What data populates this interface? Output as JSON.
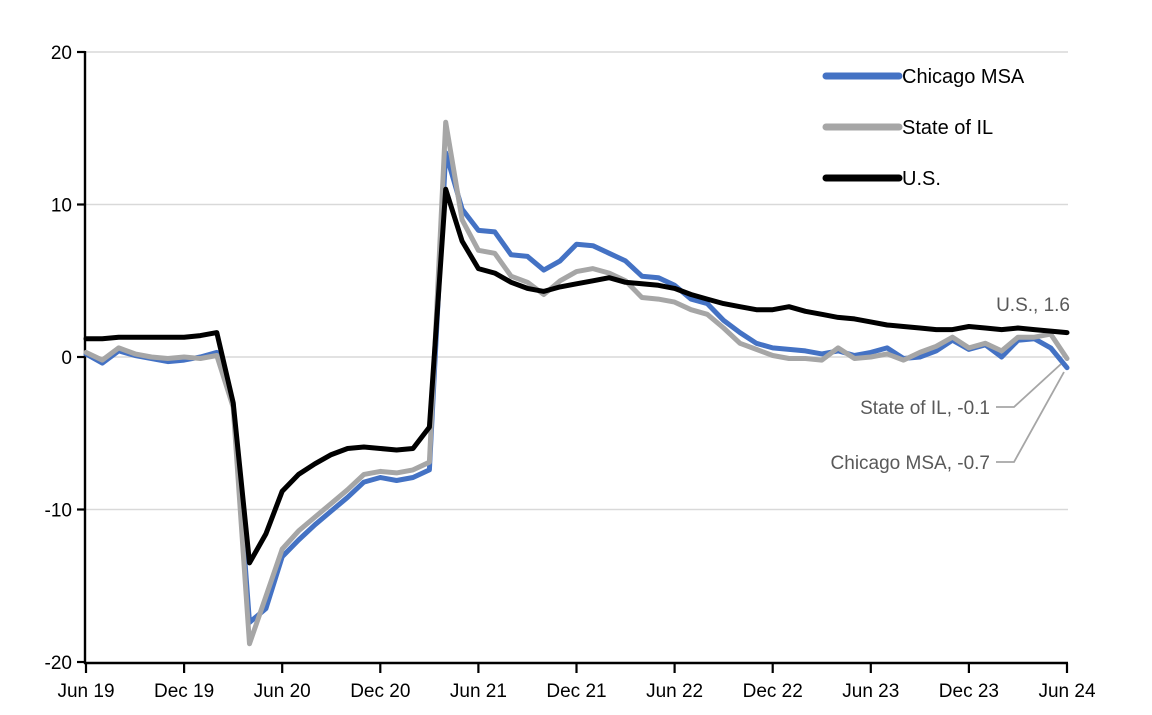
{
  "chart_data": {
    "type": "line",
    "title": "",
    "x_start": "Jun 2019",
    "x_end": "Jun 2024",
    "frequency": "monthly",
    "months_span": 60,
    "x_tick_labels": [
      "Jun 19",
      "Dec 19",
      "Jun 20",
      "Dec 20",
      "Jun 21",
      "Dec 21",
      "Jun 22",
      "Dec 22",
      "Jun 23",
      "Dec 23",
      "Jun 24"
    ],
    "y_tick_labels": [
      "20",
      "10",
      "0",
      "-10",
      "-20"
    ],
    "y_tick_values": [
      20,
      10,
      0,
      -10,
      -20
    ],
    "ylim": [
      -20,
      20
    ],
    "grid": true,
    "legend_position": "top-right",
    "series": [
      {
        "name": "Chicago MSA",
        "color": "#4472C4",
        "end_value": -0.7,
        "values": [
          0.2,
          -0.4,
          0.4,
          0.1,
          -0.1,
          -0.3,
          -0.2,
          0.0,
          0.3,
          -3.1,
          -17.4,
          -16.5,
          -13.1,
          -12.0,
          -11.0,
          -10.1,
          -9.2,
          -8.2,
          -7.9,
          -8.1,
          -7.9,
          -7.4,
          13.4,
          9.7,
          8.3,
          8.2,
          6.7,
          6.6,
          5.7,
          6.3,
          7.4,
          7.3,
          6.8,
          6.3,
          5.3,
          5.2,
          4.7,
          3.8,
          3.5,
          2.4,
          1.6,
          0.9,
          0.6,
          0.5,
          0.4,
          0.2,
          0.4,
          0.1,
          0.3,
          0.6,
          -0.1,
          0.0,
          0.4,
          1.1,
          0.5,
          0.8,
          0.0,
          1.1,
          1.2,
          0.6,
          -0.7
        ]
      },
      {
        "name": "State of IL",
        "color": "#A6A6A6",
        "end_value": -0.1,
        "values": [
          0.3,
          -0.2,
          0.6,
          0.2,
          0.0,
          -0.1,
          0.0,
          -0.1,
          0.1,
          -3.3,
          -18.8,
          -15.7,
          -12.6,
          -11.4,
          -10.5,
          -9.6,
          -8.7,
          -7.7,
          -7.5,
          -7.6,
          -7.4,
          -6.9,
          15.4,
          9.0,
          7.0,
          6.8,
          5.3,
          4.9,
          4.1,
          5.0,
          5.6,
          5.8,
          5.5,
          5.0,
          3.9,
          3.8,
          3.6,
          3.1,
          2.8,
          1.9,
          0.9,
          0.5,
          0.1,
          -0.1,
          -0.1,
          -0.2,
          0.6,
          -0.1,
          0.0,
          0.2,
          -0.2,
          0.3,
          0.7,
          1.3,
          0.6,
          0.9,
          0.4,
          1.3,
          1.3,
          1.5,
          -0.1
        ]
      },
      {
        "name": "U.S.",
        "color": "#000000",
        "end_value": 1.6,
        "values": [
          1.2,
          1.2,
          1.3,
          1.3,
          1.3,
          1.3,
          1.3,
          1.4,
          1.6,
          -3.0,
          -13.5,
          -11.6,
          -8.8,
          -7.7,
          -7.0,
          -6.4,
          -6.0,
          -5.9,
          -6.0,
          -6.1,
          -6.0,
          -4.6,
          11.0,
          7.6,
          5.8,
          5.5,
          4.9,
          4.5,
          4.3,
          4.6,
          4.8,
          5.0,
          5.2,
          4.9,
          4.8,
          4.7,
          4.5,
          4.1,
          3.8,
          3.5,
          3.3,
          3.1,
          3.1,
          3.3,
          3.0,
          2.8,
          2.6,
          2.5,
          2.3,
          2.1,
          2.0,
          1.9,
          1.8,
          1.8,
          2.0,
          1.9,
          1.8,
          1.9,
          1.8,
          1.7,
          1.6
        ]
      }
    ],
    "legend_items": [
      "Chicago MSA",
      "State of IL",
      "U.S."
    ],
    "annotations": [
      {
        "text": "U.S., 1.6"
      },
      {
        "text": "State of IL, -0.1"
      },
      {
        "text": "Chicago MSA, -0.7"
      }
    ]
  },
  "colors": {
    "chicago_msa": "#4472C4",
    "state_of_il": "#A6A6A6",
    "us": "#000000",
    "gridline": "#D9D9D9",
    "axis": "#000000",
    "annotation_text": "#595959",
    "leader_line": "#A6A6A6",
    "background": "#ffffff"
  }
}
